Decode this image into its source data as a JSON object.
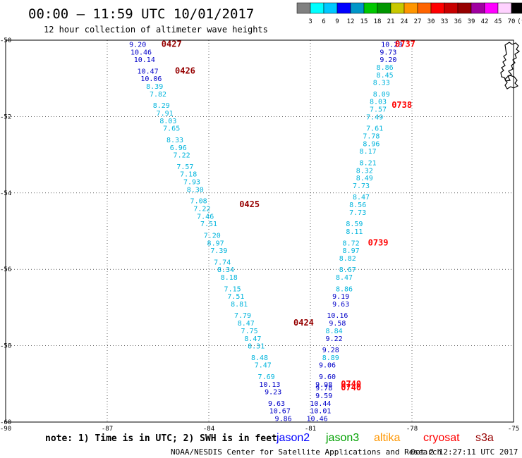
{
  "header": {
    "title": "00:00 – 11:59 UTC 10/01/2017",
    "subtitle": "12 hour collection of altimeter wave heights"
  },
  "color_scale": {
    "colors": [
      "#808080",
      "#00ffff",
      "#00c8ff",
      "#0000ff",
      "#0096c8",
      "#00c800",
      "#009600",
      "#c8c800",
      "#ff9600",
      "#ff6400",
      "#ff0000",
      "#c80000",
      "#960000",
      "#a000a0",
      "#ff00ff",
      "#ffd2ff",
      "#000000"
    ],
    "labels": [
      "3",
      "6",
      "9",
      "12",
      "15",
      "18",
      "21",
      "24",
      "27",
      "30",
      "33",
      "36",
      "39",
      "42",
      "45",
      "70",
      "(ft)"
    ]
  },
  "footer": {
    "note": "note: 1) Time is in UTC; 2) SWH is in feet",
    "credit": "NOAA/NESDIS Center for Satellite Applications and Research",
    "timestamp": "Oct  2 12:27:11 UTC 2017"
  },
  "legend": [
    {
      "name": "jason2",
      "color": "#0000ff"
    },
    {
      "name": "jason3",
      "color": "#00a000"
    },
    {
      "name": "altika",
      "color": "#ff9600"
    },
    {
      "name": "cryosat",
      "color": "#ff0000"
    },
    {
      "name": "s3a",
      "color": "#960000"
    }
  ],
  "chart_data": {
    "type": "scatter",
    "xlim": [
      -90,
      -75
    ],
    "ylim": [
      -60,
      -50
    ],
    "x_ticks": [
      "-90",
      "-87",
      "-84",
      "-81",
      "-78",
      "-75"
    ],
    "y_ticks": [
      "-50",
      "-52",
      "-54",
      "-56",
      "-58",
      "-60"
    ],
    "series": [
      {
        "name": "s3a",
        "color_hex": "#960000",
        "time_labels": [
          {
            "text": "0427",
            "lat": -50.1,
            "lon": -85.4
          },
          {
            "text": "0426",
            "lat": -50.8,
            "lon": -85.0
          },
          {
            "text": "0425",
            "lat": -54.3,
            "lon": -83.1
          },
          {
            "text": "0424",
            "lat": -57.4,
            "lon": -81.5
          }
        ],
        "points": [
          {
            "v": "9.20",
            "lat": -50.1,
            "lon": -86.1
          },
          {
            "v": "10.46",
            "lat": -50.3,
            "lon": -86.0
          },
          {
            "v": "10.14",
            "lat": -50.5,
            "lon": -85.9
          },
          {
            "v": "10.47",
            "lat": -50.8,
            "lon": -85.8
          },
          {
            "v": "10.06",
            "lat": -51.0,
            "lon": -85.7
          },
          {
            "v": "8.39",
            "lat": -51.2,
            "lon": -85.6
          },
          {
            "v": "7.82",
            "lat": -51.4,
            "lon": -85.5
          },
          {
            "v": "8.29",
            "lat": -51.7,
            "lon": -85.4
          },
          {
            "v": "7.91",
            "lat": -51.9,
            "lon": -85.3
          },
          {
            "v": "8.03",
            "lat": -52.1,
            "lon": -85.2
          },
          {
            "v": "7.65",
            "lat": -52.3,
            "lon": -85.1
          },
          {
            "v": "8.33",
            "lat": -52.6,
            "lon": -85.0
          },
          {
            "v": "6.96",
            "lat": -52.8,
            "lon": -84.9
          },
          {
            "v": "7.22",
            "lat": -53.0,
            "lon": -84.8
          },
          {
            "v": "7.57",
            "lat": -53.3,
            "lon": -84.7
          },
          {
            "v": "7.18",
            "lat": -53.5,
            "lon": -84.6
          },
          {
            "v": "7.93",
            "lat": -53.7,
            "lon": -84.5
          },
          {
            "v": "8.30",
            "lat": -53.9,
            "lon": -84.4
          },
          {
            "v": "7.08",
            "lat": -54.2,
            "lon": -84.3
          },
          {
            "v": "7.22",
            "lat": -54.4,
            "lon": -84.2
          },
          {
            "v": "7.46",
            "lat": -54.6,
            "lon": -84.1
          },
          {
            "v": "7.51",
            "lat": -54.8,
            "lon": -84.0
          },
          {
            "v": "7.20",
            "lat": -55.1,
            "lon": -83.9
          },
          {
            "v": "8.97",
            "lat": -55.3,
            "lon": -83.8
          },
          {
            "v": "7.39",
            "lat": -55.5,
            "lon": -83.7
          },
          {
            "v": "7.74",
            "lat": -55.8,
            "lon": -83.6
          },
          {
            "v": "8.34",
            "lat": -56.0,
            "lon": -83.5
          },
          {
            "v": "8.18",
            "lat": -56.2,
            "lon": -83.4
          },
          {
            "v": "7.15",
            "lat": -56.5,
            "lon": -83.3
          },
          {
            "v": "7.51",
            "lat": -56.7,
            "lon": -83.2
          },
          {
            "v": "8.81",
            "lat": -56.9,
            "lon": -83.1
          },
          {
            "v": "7.79",
            "lat": -57.2,
            "lon": -83.0
          },
          {
            "v": "8.47",
            "lat": -57.4,
            "lon": -82.9
          },
          {
            "v": "7.75",
            "lat": -57.6,
            "lon": -82.8
          },
          {
            "v": "8.47",
            "lat": -57.8,
            "lon": -82.7
          },
          {
            "v": "8.31",
            "lat": -58.0,
            "lon": -82.6
          },
          {
            "v": "8.48",
            "lat": -58.3,
            "lon": -82.5
          },
          {
            "v": "7.47",
            "lat": -58.5,
            "lon": -82.4
          },
          {
            "v": "7.69",
            "lat": -58.8,
            "lon": -82.3
          },
          {
            "v": "10.13",
            "lat": -59.0,
            "lon": -82.2
          },
          {
            "v": "9.23",
            "lat": -59.2,
            "lon": -82.1
          },
          {
            "v": "9.63",
            "lat": -59.5,
            "lon": -82.0
          },
          {
            "v": "10.67",
            "lat": -59.7,
            "lon": -81.9
          },
          {
            "v": "9.86",
            "lat": -59.9,
            "lon": -81.8
          }
        ]
      },
      {
        "name": "cryosat",
        "color_hex": "#ff0000",
        "time_labels": [
          {
            "text": "0737",
            "lat": -50.1,
            "lon": -78.5
          },
          {
            "text": "0738",
            "lat": -51.7,
            "lon": -78.6
          },
          {
            "text": "0739",
            "lat": -55.3,
            "lon": -79.3
          },
          {
            "text": "0740",
            "lat": -59.0,
            "lon": -80.1
          },
          {
            "text": "0740",
            "lat": -59.1,
            "lon": -80.1
          }
        ],
        "points": [
          {
            "v": "10.20",
            "lat": -50.1,
            "lon": -78.6
          },
          {
            "v": "9.73",
            "lat": -50.3,
            "lon": -78.7
          },
          {
            "v": "9.20",
            "lat": -50.5,
            "lon": -78.7
          },
          {
            "v": "8.86",
            "lat": -50.7,
            "lon": -78.8
          },
          {
            "v": "8.45",
            "lat": -50.9,
            "lon": -78.8
          },
          {
            "v": "8.33",
            "lat": -51.1,
            "lon": -78.9
          },
          {
            "v": "8.09",
            "lat": -51.4,
            "lon": -78.9
          },
          {
            "v": "8.03",
            "lat": -51.6,
            "lon": -79.0
          },
          {
            "v": "7.57",
            "lat": -51.8,
            "lon": -79.0
          },
          {
            "v": "7.49",
            "lat": -52.0,
            "lon": -79.1
          },
          {
            "v": "7.61",
            "lat": -52.3,
            "lon": -79.1
          },
          {
            "v": "7.78",
            "lat": -52.5,
            "lon": -79.2
          },
          {
            "v": "8.96",
            "lat": -52.7,
            "lon": -79.2
          },
          {
            "v": "8.17",
            "lat": -52.9,
            "lon": -79.3
          },
          {
            "v": "8.21",
            "lat": -53.2,
            "lon": -79.3
          },
          {
            "v": "8.32",
            "lat": -53.4,
            "lon": -79.4
          },
          {
            "v": "8.49",
            "lat": -53.6,
            "lon": -79.4
          },
          {
            "v": "7.73",
            "lat": -53.8,
            "lon": -79.5
          },
          {
            "v": "8.47",
            "lat": -54.1,
            "lon": -79.5
          },
          {
            "v": "8.56",
            "lat": -54.3,
            "lon": -79.6
          },
          {
            "v": "7.73",
            "lat": -54.5,
            "lon": -79.6
          },
          {
            "v": "8.59",
            "lat": -54.8,
            "lon": -79.7
          },
          {
            "v": "8.11",
            "lat": -55.0,
            "lon": -79.7
          },
          {
            "v": "8.72",
            "lat": -55.3,
            "lon": -79.8
          },
          {
            "v": "8.97",
            "lat": -55.5,
            "lon": -79.8
          },
          {
            "v": "8.82",
            "lat": -55.7,
            "lon": -79.9
          },
          {
            "v": "8.67",
            "lat": -56.0,
            "lon": -79.9
          },
          {
            "v": "8.47",
            "lat": -56.2,
            "lon": -80.0
          },
          {
            "v": "8.86",
            "lat": -56.5,
            "lon": -80.0
          },
          {
            "v": "9.19",
            "lat": -56.7,
            "lon": -80.1
          },
          {
            "v": "9.63",
            "lat": -56.9,
            "lon": -80.1
          },
          {
            "v": "10.16",
            "lat": -57.2,
            "lon": -80.2
          },
          {
            "v": "9.58",
            "lat": -57.4,
            "lon": -80.2
          },
          {
            "v": "8.84",
            "lat": -57.6,
            "lon": -80.3
          },
          {
            "v": "9.22",
            "lat": -57.8,
            "lon": -80.3
          },
          {
            "v": "9.28",
            "lat": -58.1,
            "lon": -80.4
          },
          {
            "v": "8.89",
            "lat": -58.3,
            "lon": -80.4
          },
          {
            "v": "9.06",
            "lat": -58.5,
            "lon": -80.5
          },
          {
            "v": "9.60",
            "lat": -58.8,
            "lon": -80.5
          },
          {
            "v": "9.98",
            "lat": -59.0,
            "lon": -80.6
          },
          {
            "v": "9.78",
            "lat": -59.1,
            "lon": -80.6
          },
          {
            "v": "9.59",
            "lat": -59.3,
            "lon": -80.6
          },
          {
            "v": "10.44",
            "lat": -59.5,
            "lon": -80.7
          },
          {
            "v": "10.01",
            "lat": -59.7,
            "lon": -80.7
          },
          {
            "v": "10.46",
            "lat": -59.9,
            "lon": -80.8
          }
        ]
      }
    ]
  }
}
